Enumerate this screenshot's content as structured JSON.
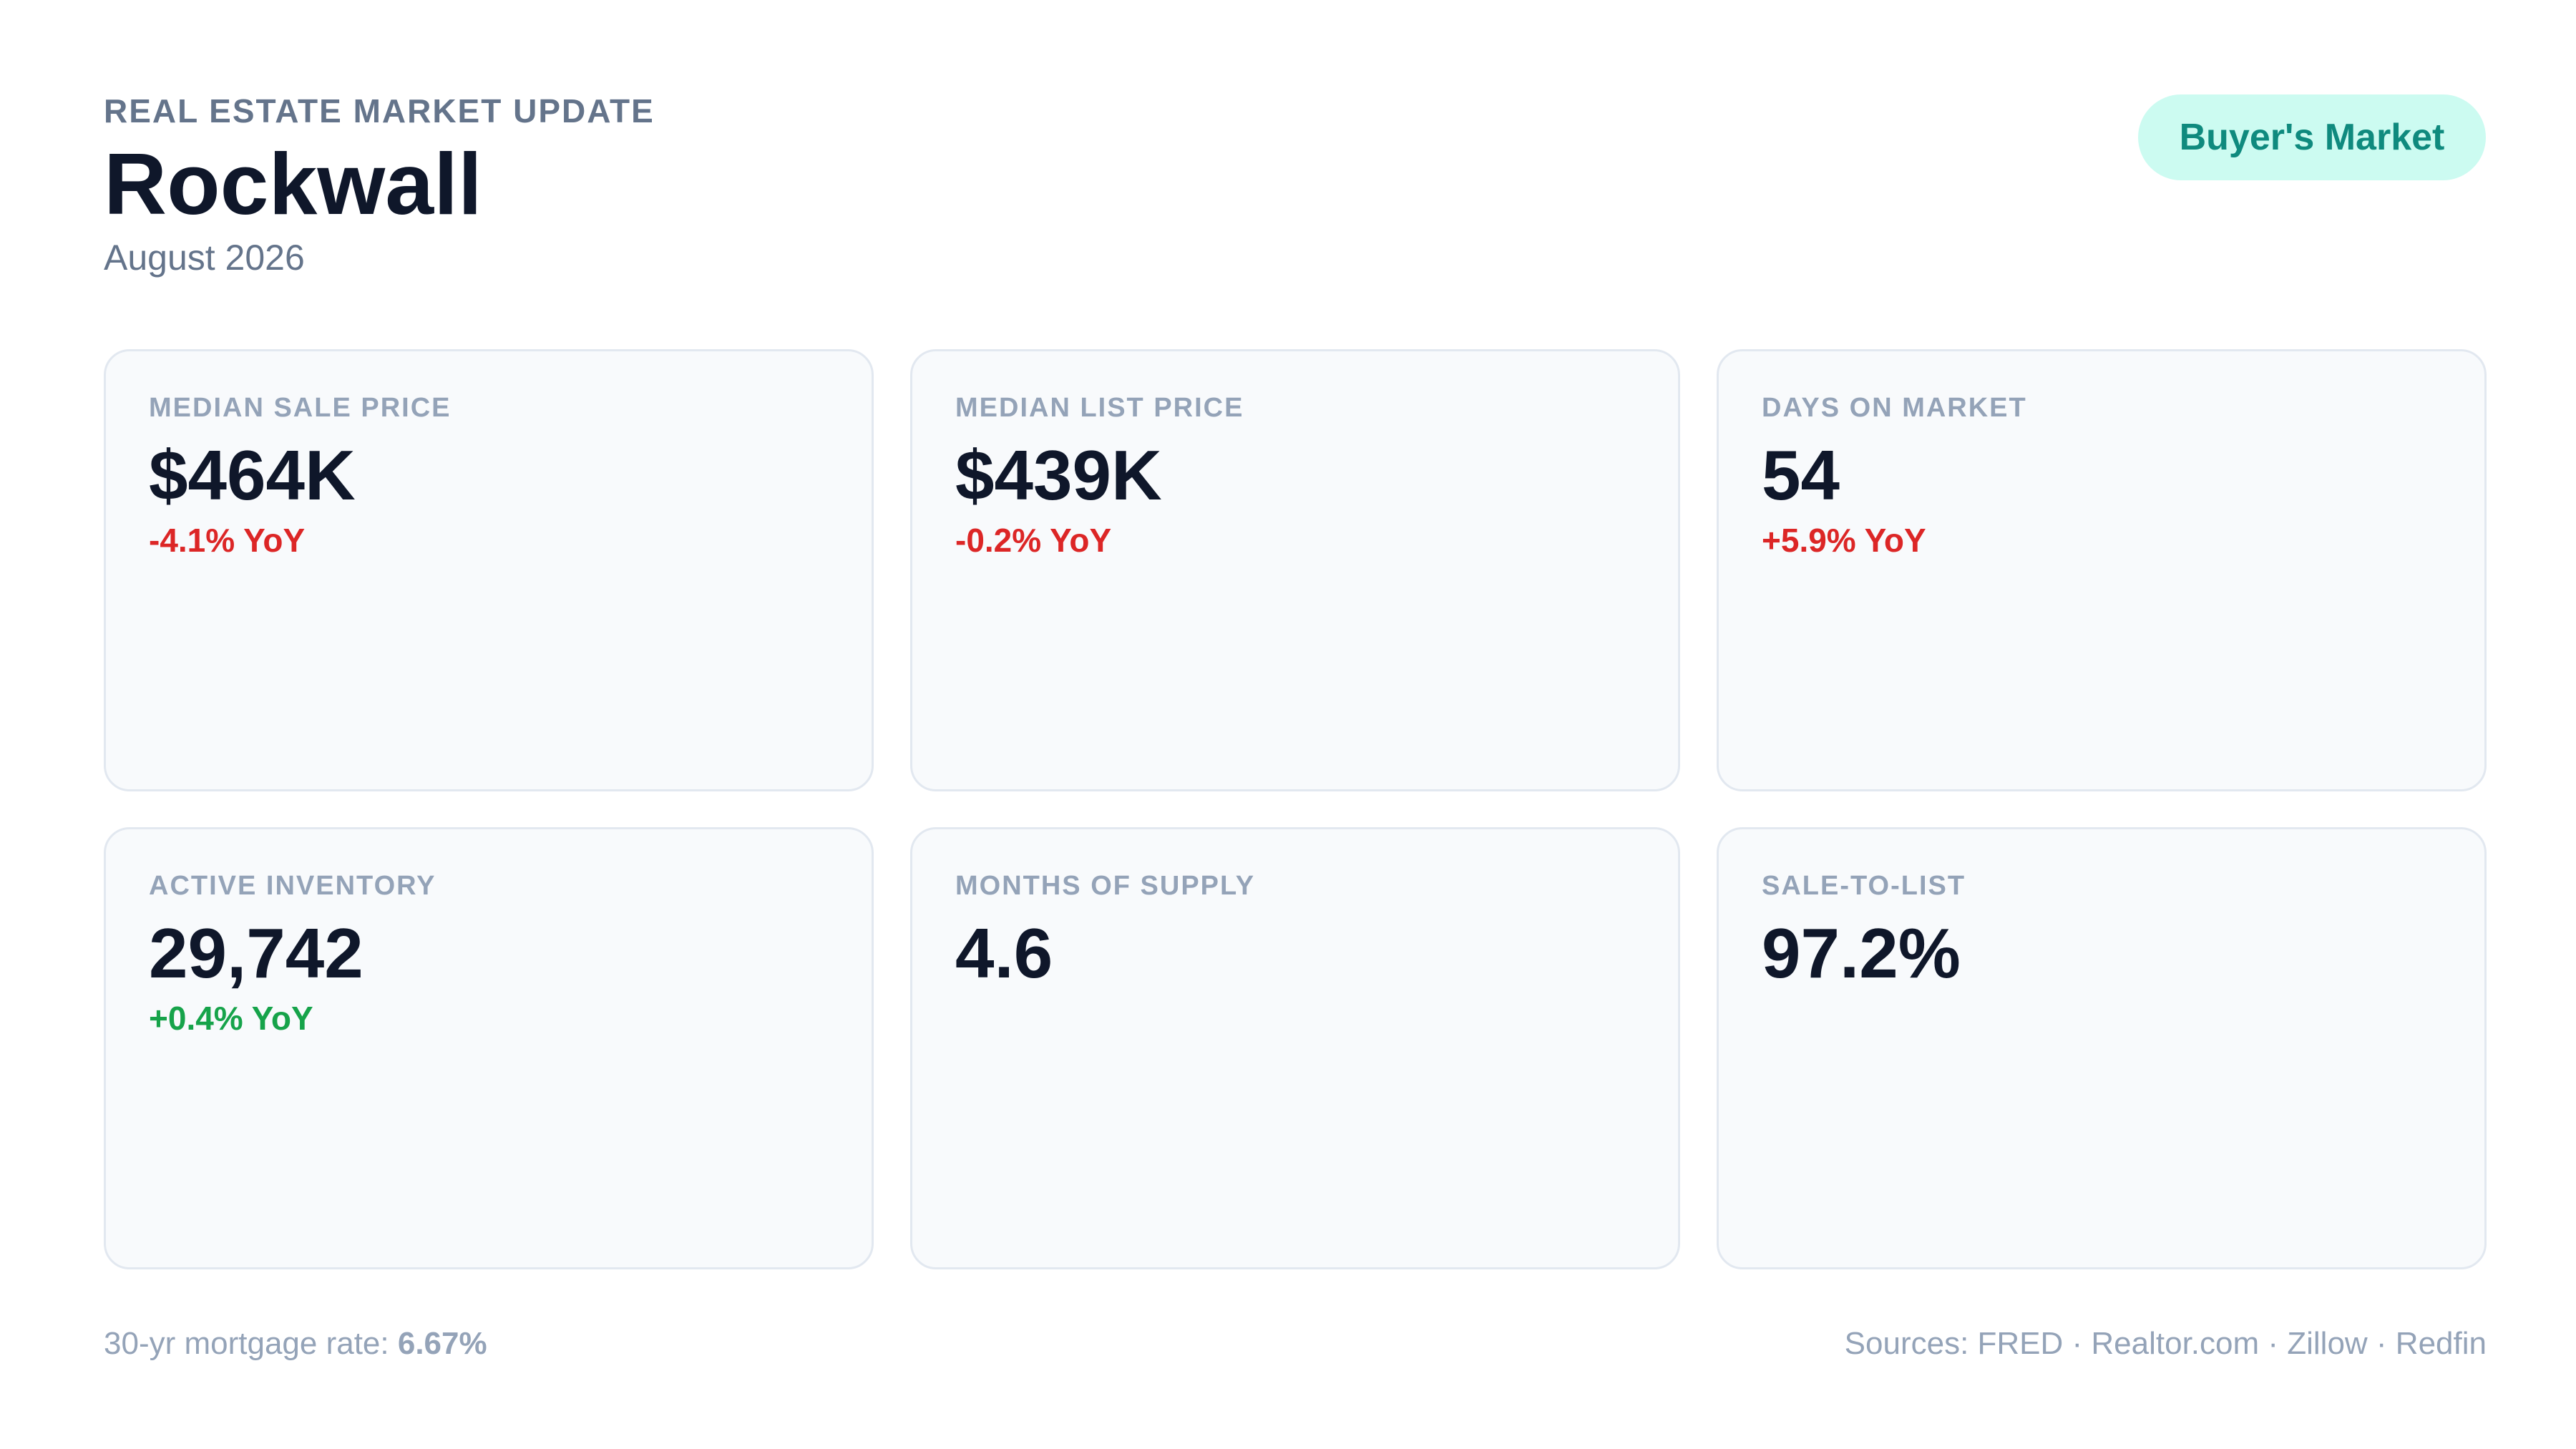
{
  "header": {
    "eyebrow": "REAL ESTATE MARKET UPDATE",
    "title": "Rockwall",
    "subtitle": "August 2026",
    "badge": "Buyer's Market"
  },
  "cards": [
    {
      "label": "MEDIAN SALE PRICE",
      "value": "$464K",
      "change": "-4.1% YoY",
      "change_color": "#dc2626"
    },
    {
      "label": "MEDIAN LIST PRICE",
      "value": "$439K",
      "change": "-0.2% YoY",
      "change_color": "#dc2626"
    },
    {
      "label": "DAYS ON MARKET",
      "value": "54",
      "change": "+5.9% YoY",
      "change_color": "#dc2626"
    },
    {
      "label": "ACTIVE INVENTORY",
      "value": "29,742",
      "change": "+0.4% YoY",
      "change_color": "#16a34a"
    },
    {
      "label": "MONTHS OF SUPPLY",
      "value": "4.6"
    },
    {
      "label": "SALE-TO-LIST",
      "value": "97.2%"
    }
  ],
  "footer": {
    "mortgage_label": "30-yr mortgage rate: ",
    "mortgage_value": "6.67%",
    "sources": "Sources: FRED · Realtor.com · Zillow · Redfin"
  },
  "colors": {
    "accent_badge_bg": "#ccfbf1",
    "accent_badge_text": "#0f8a7e",
    "negative": "#dc2626",
    "positive": "#16a34a"
  }
}
